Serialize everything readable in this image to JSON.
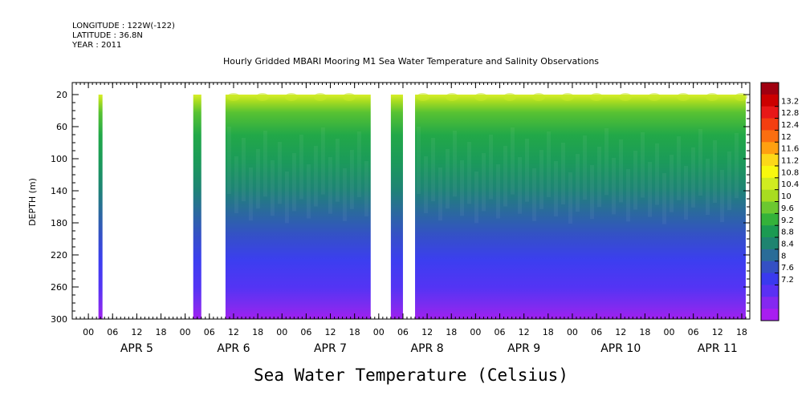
{
  "header": {
    "longitude": "LONGITUDE : 122W(-122)",
    "latitude": "LATITUDE : 36.8N",
    "year": "YEAR : 2011"
  },
  "chart_data": {
    "type": "heatmap",
    "title": "Hourly Gridded MBARI Mooring M1 Sea Water Temperature and Salinity Observations",
    "bottom_title": "Sea Water Temperature (Celsius)",
    "ylabel": "DEPTH (m)",
    "y_ticks": [
      20,
      60,
      100,
      140,
      180,
      220,
      260,
      300
    ],
    "ylim": [
      5,
      300
    ],
    "y_inverted": true,
    "x_hour_ticks": [
      "00",
      "06",
      "12",
      "18",
      "00",
      "06",
      "12",
      "18",
      "00",
      "06",
      "12",
      "18",
      "00",
      "06",
      "12",
      "18",
      "00",
      "06",
      "12",
      "18",
      "00",
      "06",
      "12",
      "18",
      "00",
      "06",
      "12",
      "18"
    ],
    "x_day_labels": [
      "APR 5",
      "APR 6",
      "APR 7",
      "APR 8",
      "APR 9",
      "APR 10",
      "APR 11"
    ],
    "xlim_hours_from_apr5_00": [
      -4,
      164
    ],
    "data_segments_hours": [
      [
        2.5,
        3.5
      ],
      [
        26,
        28
      ],
      [
        34,
        70
      ],
      [
        75,
        78
      ],
      [
        81,
        163
      ]
    ],
    "colorbar_levels": [
      "13.2",
      "12.8",
      "12.4",
      "12",
      "11.6",
      "11.2",
      "10.8",
      "10.4",
      "10",
      "9.6",
      "9.2",
      "8.8",
      "8.4",
      "8",
      "7.6",
      "7.2"
    ],
    "colorbar_colors": [
      "#a00010",
      "#cc0000",
      "#e81818",
      "#f43e10",
      "#fb6e10",
      "#ffa010",
      "#fcd818",
      "#f8f80e",
      "#d0ec20",
      "#a8dc20",
      "#6cc830",
      "#34b23a",
      "#1b9a52",
      "#1e8470",
      "#2a6c98",
      "#3450c4",
      "#3a3aee",
      "#5a30f4",
      "#8428f0",
      "#a81ef0"
    ]
  }
}
